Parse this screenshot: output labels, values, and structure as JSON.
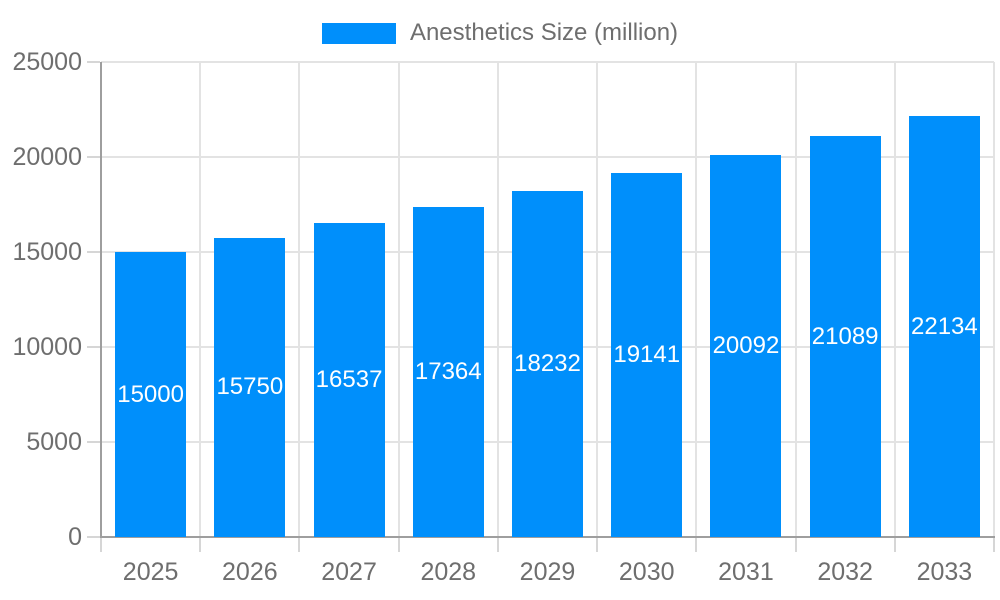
{
  "legend": {
    "label": "Anesthetics Size (million)",
    "position": "top"
  },
  "chart_data": {
    "type": "bar",
    "title": "",
    "xlabel": "",
    "ylabel": "",
    "categories": [
      "2025",
      "2026",
      "2027",
      "2028",
      "2029",
      "2030",
      "2031",
      "2032",
      "2033"
    ],
    "series": [
      {
        "name": "Anesthetics Size (million)",
        "values": [
          15000,
          15750,
          16537,
          17364,
          18232,
          19141,
          20092,
          21089,
          22134
        ]
      }
    ],
    "data_labels": "inside-center",
    "ylim": [
      0,
      25000
    ],
    "yticks": [
      0,
      5000,
      10000,
      15000,
      20000,
      25000
    ],
    "grid": true,
    "legend_position": "top",
    "colors": {
      "bar": "#008FFB",
      "data_label": "#ffffff",
      "grid": "#e3e3e3",
      "tick": "#d6d6d6",
      "axis": "#9e9e9e",
      "text": "#6e6e6e"
    }
  }
}
